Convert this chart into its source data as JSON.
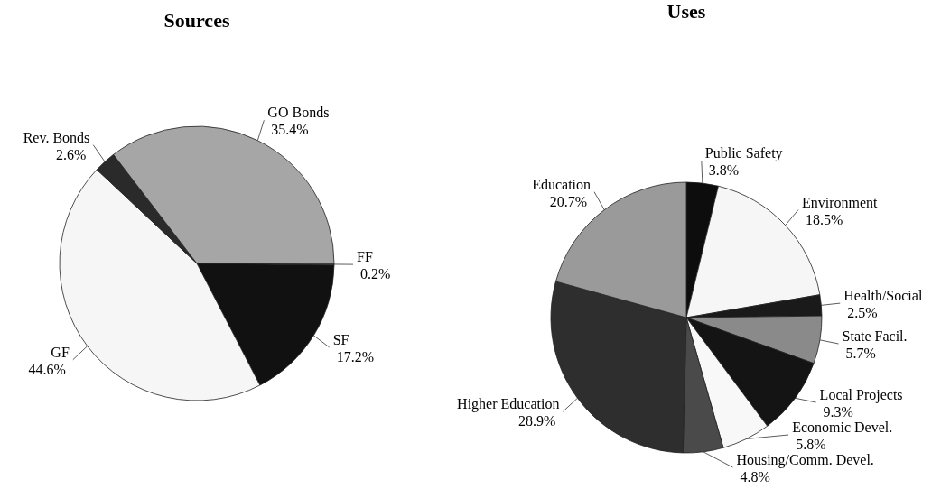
{
  "chart_data": [
    {
      "type": "pie",
      "title": "Sources",
      "categories": [
        "FF",
        "SF",
        "GF",
        "Rev. Bonds",
        "GO Bonds"
      ],
      "values": [
        0.2,
        17.2,
        44.6,
        2.6,
        35.4
      ],
      "value_labels": [
        "0.2%",
        "17.2%",
        "44.6%",
        "2.6%",
        "35.4%"
      ],
      "colors": [
        "#777777",
        "#111111",
        "#f6f6f6",
        "#2a2a2a",
        "#a6a6a6"
      ]
    },
    {
      "type": "pie",
      "title": "Uses",
      "categories": [
        "Public Safety",
        "Environment",
        "Health/Social",
        "State Facil.",
        "Local Projects",
        "Economic Devel.",
        "Housing/Comm. Devel.",
        "Higher Education",
        "Education"
      ],
      "values": [
        3.8,
        18.5,
        2.5,
        5.7,
        9.3,
        5.8,
        4.8,
        28.9,
        20.7
      ],
      "value_labels": [
        "3.8%",
        "18.5%",
        "2.5%",
        "5.7%",
        "9.3%",
        "5.8%",
        "4.8%",
        "28.9%",
        "20.7%"
      ],
      "colors": [
        "#0d0d0d",
        "#f6f6f6",
        "#1a1a1a",
        "#8a8a8a",
        "#141414",
        "#f8f8f8",
        "#4a4a4a",
        "#2e2e2e",
        "#9a9a9a"
      ]
    }
  ]
}
